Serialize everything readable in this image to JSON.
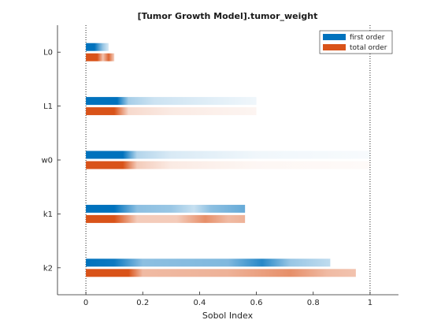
{
  "chart_data": {
    "type": "bar",
    "title": "[Tumor Growth Model].tumor_weight",
    "xlabel": "Sobol Index",
    "ylabel": "",
    "xlim": [
      -0.1,
      1.1
    ],
    "xticks": [
      "0",
      "0.2",
      "0.4",
      "0.6",
      "0.8",
      "1"
    ],
    "reference_lines": [
      0,
      1
    ],
    "orientation": "horizontal",
    "grid": false,
    "legend_position": "top-right",
    "categories": [
      "L0",
      "L1",
      "w0",
      "k1",
      "k2"
    ],
    "series": [
      {
        "name": "first order",
        "color": "#0072BD",
        "values": [
          0.08,
          0.6,
          1.0,
          0.56,
          0.86
        ],
        "intensity_profiles": [
          [
            [
              0,
              1
            ],
            [
              0.03,
              1
            ],
            [
              0.06,
              0.4
            ],
            [
              0.09,
              0.15
            ],
            [
              0.13,
              0.05
            ]
          ],
          [
            [
              0,
              1
            ],
            [
              0.11,
              1
            ],
            [
              0.15,
              0.35
            ],
            [
              0.24,
              0.2
            ],
            [
              0.44,
              0.12
            ],
            [
              0.6,
              0.06
            ]
          ],
          [
            [
              0,
              1
            ],
            [
              0.13,
              1
            ],
            [
              0.18,
              0.3
            ],
            [
              0.3,
              0.15
            ],
            [
              0.6,
              0.06
            ],
            [
              1.0,
              0.03
            ]
          ],
          [
            [
              0,
              1
            ],
            [
              0.1,
              1
            ],
            [
              0.18,
              0.45
            ],
            [
              0.3,
              0.4
            ],
            [
              0.38,
              0.22
            ],
            [
              0.44,
              0.45
            ],
            [
              0.56,
              0.6
            ]
          ],
          [
            [
              0,
              1
            ],
            [
              0.1,
              0.95
            ],
            [
              0.2,
              0.45
            ],
            [
              0.5,
              0.5
            ],
            [
              0.62,
              0.85
            ],
            [
              0.72,
              0.4
            ],
            [
              0.86,
              0.25
            ]
          ]
        ]
      },
      {
        "name": "total order",
        "color": "#D95319",
        "values": [
          0.1,
          0.6,
          1.0,
          0.56,
          0.95
        ],
        "intensity_profiles": [
          [
            [
              0,
              1
            ],
            [
              0.04,
              1
            ],
            [
              0.06,
              0.35
            ],
            [
              0.08,
              0.9
            ],
            [
              0.1,
              0.25
            ]
          ],
          [
            [
              0,
              1
            ],
            [
              0.1,
              1
            ],
            [
              0.15,
              0.22
            ],
            [
              0.3,
              0.12
            ],
            [
              0.6,
              0.06
            ]
          ],
          [
            [
              0,
              1
            ],
            [
              0.13,
              1
            ],
            [
              0.18,
              0.3
            ],
            [
              0.3,
              0.12
            ],
            [
              0.6,
              0.05
            ],
            [
              1.0,
              0.03
            ]
          ],
          [
            [
              0,
              1
            ],
            [
              0.1,
              1
            ],
            [
              0.18,
              0.3
            ],
            [
              0.32,
              0.3
            ],
            [
              0.42,
              0.65
            ],
            [
              0.5,
              0.4
            ],
            [
              0.56,
              0.45
            ]
          ],
          [
            [
              0,
              1
            ],
            [
              0.15,
              1
            ],
            [
              0.2,
              0.4
            ],
            [
              0.5,
              0.45
            ],
            [
              0.72,
              0.65
            ],
            [
              0.85,
              0.4
            ],
            [
              0.95,
              0.35
            ]
          ]
        ]
      }
    ]
  }
}
